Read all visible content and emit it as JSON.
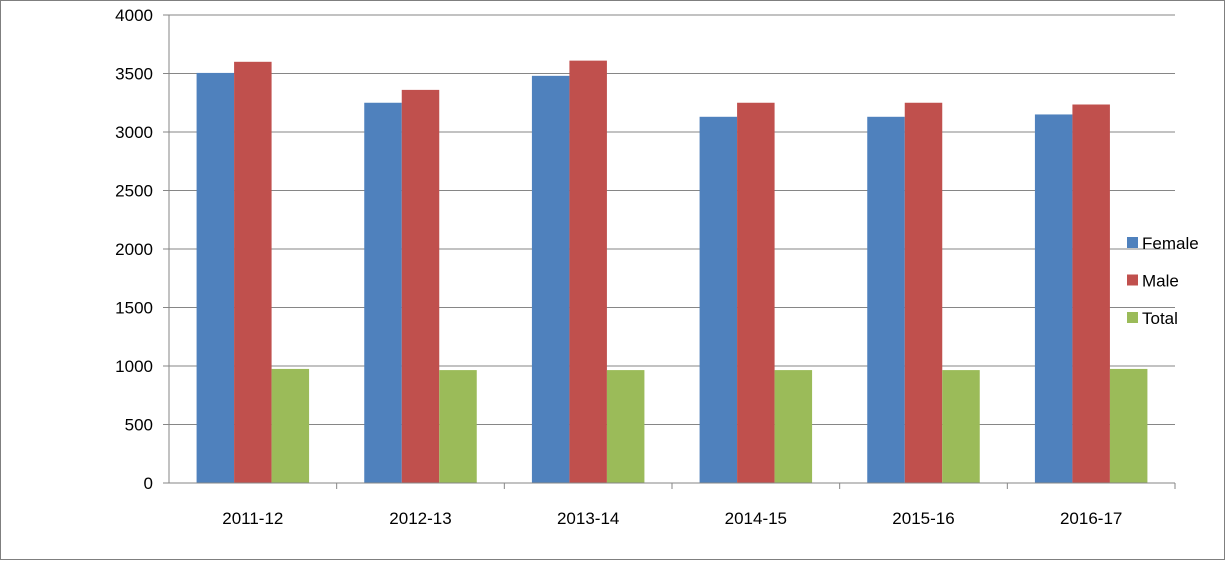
{
  "chart_data": {
    "type": "bar",
    "categories": [
      "2011-12",
      "2012-13",
      "2013-14",
      "2014-15",
      "2015-16",
      "2016-17"
    ],
    "series": [
      {
        "name": "Female",
        "color": "#4f81bd",
        "values": [
          3505,
          3250,
          3480,
          3130,
          3130,
          3150
        ]
      },
      {
        "name": "Male",
        "color": "#c0504d",
        "values": [
          3600,
          3360,
          3610,
          3250,
          3250,
          3235
        ]
      },
      {
        "name": "Total",
        "color": "#9bbb59",
        "values": [
          975,
          965,
          965,
          965,
          965,
          975
        ]
      }
    ],
    "y_ticks": [
      "0",
      "500",
      "1000",
      "1500",
      "2000",
      "2500",
      "3000",
      "3500",
      "4000"
    ],
    "ylim": [
      0,
      4000
    ],
    "grid": true,
    "legend_position": "right",
    "title": "",
    "xlabel": "",
    "ylabel": ""
  }
}
